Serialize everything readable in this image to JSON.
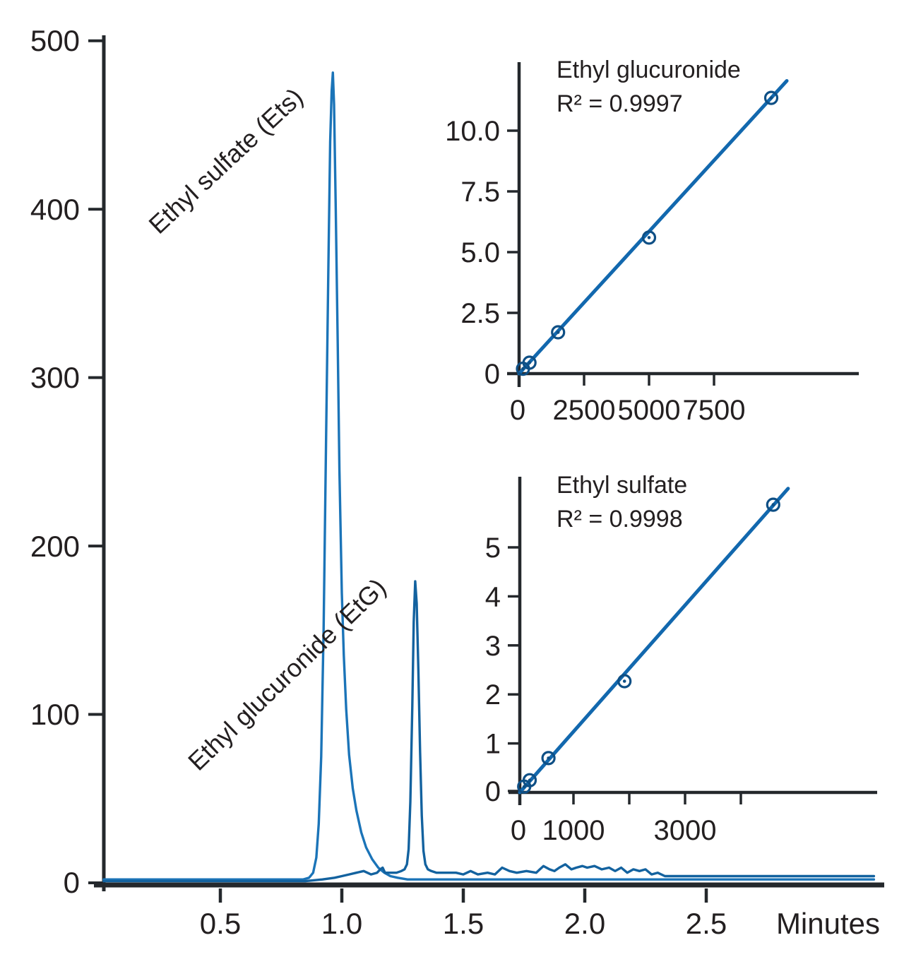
{
  "figure": {
    "accent_blue": "#1268ae",
    "axis_color": "#24282c",
    "text_color": "#231f20"
  },
  "chart_data": [
    {
      "id": "chromatogram",
      "type": "line",
      "xlabel": "Minutes",
      "xlim": [
        0,
        3.2
      ],
      "ylim": [
        0,
        500
      ],
      "x_tick_labels": [
        "0.5",
        "1.0",
        "1.5",
        "2.0",
        "2.5"
      ],
      "x_tick_values": [
        0.5,
        1.0,
        1.5,
        2.0,
        2.5
      ],
      "y_tick_labels": [
        "0",
        "100",
        "200",
        "300",
        "400",
        "500"
      ],
      "y_tick_values": [
        0,
        100,
        200,
        300,
        400,
        500
      ],
      "grid": false,
      "annotations": [
        {
          "label": "Ethyl sulfate (Ets)",
          "angle_deg": -43,
          "refers_to": "peak at 0.97 min"
        },
        {
          "label": "Ethyl glucuronide (EtG)",
          "angle_deg": -44,
          "refers_to": "peak at 1.30 min"
        }
      ],
      "series": [
        {
          "name": "Ethyl sulfate (Ets)",
          "color": "#1b74b8",
          "peak_minutes": 0.97,
          "peak_height": 481,
          "points": [
            [
              0.02,
              2
            ],
            [
              0.3,
              2
            ],
            [
              0.6,
              2
            ],
            [
              0.8,
              2
            ],
            [
              0.84,
              2
            ],
            [
              0.865,
              3
            ],
            [
              0.882,
              6
            ],
            [
              0.895,
              15
            ],
            [
              0.905,
              35
            ],
            [
              0.915,
              75
            ],
            [
              0.925,
              150
            ],
            [
              0.935,
              260
            ],
            [
              0.945,
              370
            ],
            [
              0.952,
              440
            ],
            [
              0.958,
              470
            ],
            [
              0.963,
              481
            ],
            [
              0.968,
              462
            ],
            [
              0.975,
              400
            ],
            [
              0.983,
              320
            ],
            [
              0.99,
              245
            ],
            [
              1.0,
              172
            ],
            [
              1.008,
              135
            ],
            [
              1.018,
              103
            ],
            [
              1.03,
              76
            ],
            [
              1.045,
              56
            ],
            [
              1.06,
              43
            ],
            [
              1.08,
              30
            ],
            [
              1.1,
              21
            ],
            [
              1.125,
              14
            ],
            [
              1.15,
              9
            ],
            [
              1.175,
              6
            ],
            [
              1.2,
              4
            ],
            [
              1.23,
              3
            ],
            [
              1.27,
              2
            ],
            [
              1.35,
              2
            ],
            [
              1.5,
              2
            ],
            [
              1.7,
              2
            ],
            [
              1.9,
              2
            ],
            [
              2.1,
              2
            ],
            [
              2.3,
              2
            ],
            [
              2.5,
              2
            ],
            [
              2.7,
              2
            ],
            [
              2.9,
              2
            ],
            [
              3.1,
              2
            ],
            [
              3.19,
              2
            ]
          ]
        },
        {
          "name": "Ethyl glucuronide (EtG)",
          "color": "#13629f",
          "peak_minutes": 1.3,
          "peak_height": 179,
          "points": [
            [
              0.02,
              1
            ],
            [
              0.3,
              1
            ],
            [
              0.6,
              1
            ],
            [
              0.85,
              1
            ],
            [
              0.92,
              2
            ],
            [
              0.97,
              3
            ],
            [
              1.0,
              4
            ],
            [
              1.03,
              5
            ],
            [
              1.06,
              6
            ],
            [
              1.09,
              7
            ],
            [
              1.12,
              5
            ],
            [
              1.145,
              6
            ],
            [
              1.158,
              8
            ],
            [
              1.168,
              9
            ],
            [
              1.178,
              6
            ],
            [
              1.2,
              6
            ],
            [
              1.225,
              6
            ],
            [
              1.245,
              7
            ],
            [
              1.258,
              8
            ],
            [
              1.268,
              11
            ],
            [
              1.275,
              20
            ],
            [
              1.282,
              48
            ],
            [
              1.29,
              105
            ],
            [
              1.296,
              155
            ],
            [
              1.302,
              179
            ],
            [
              1.308,
              166
            ],
            [
              1.315,
              126
            ],
            [
              1.322,
              78
            ],
            [
              1.329,
              40
            ],
            [
              1.336,
              19
            ],
            [
              1.344,
              11
            ],
            [
              1.354,
              8
            ],
            [
              1.368,
              7
            ],
            [
              1.39,
              6
            ],
            [
              1.43,
              6
            ],
            [
              1.47,
              6
            ],
            [
              1.5,
              5
            ],
            [
              1.53,
              7
            ],
            [
              1.56,
              5
            ],
            [
              1.6,
              6
            ],
            [
              1.63,
              5
            ],
            [
              1.66,
              9
            ],
            [
              1.69,
              7
            ],
            [
              1.72,
              6
            ],
            [
              1.76,
              7
            ],
            [
              1.8,
              6
            ],
            [
              1.83,
              10
            ],
            [
              1.855,
              8
            ],
            [
              1.875,
              7
            ],
            [
              1.895,
              9
            ],
            [
              1.92,
              11
            ],
            [
              1.945,
              8
            ],
            [
              1.965,
              9
            ],
            [
              1.99,
              10
            ],
            [
              2.01,
              9
            ],
            [
              2.04,
              10
            ],
            [
              2.07,
              8
            ],
            [
              2.1,
              9
            ],
            [
              2.125,
              7
            ],
            [
              2.15,
              9
            ],
            [
              2.175,
              6
            ],
            [
              2.2,
              8
            ],
            [
              2.225,
              7
            ],
            [
              2.25,
              8
            ],
            [
              2.275,
              5
            ],
            [
              2.3,
              6
            ],
            [
              2.33,
              4
            ],
            [
              2.38,
              4
            ],
            [
              2.5,
              4
            ],
            [
              2.7,
              4
            ],
            [
              2.9,
              4
            ],
            [
              3.1,
              4
            ],
            [
              3.19,
              4
            ]
          ]
        }
      ]
    },
    {
      "id": "etg-calibration",
      "type": "scatter",
      "title": "Ethyl glucuronide",
      "r2_label": "R² = 0.9997",
      "r_squared": 0.9997,
      "line_color": "#1268ae",
      "marker_color": "#0e4f85",
      "x_tick_labels": [
        "0",
        "2500",
        "5000",
        "7500"
      ],
      "x_tick_values": [
        0,
        2500,
        5000,
        7500
      ],
      "y_tick_labels": [
        "0",
        "2.5",
        "5.0",
        "7.5",
        "10.0"
      ],
      "y_tick_values": [
        0,
        2.5,
        5.0,
        7.5,
        10.0
      ],
      "xlim": [
        0,
        13000
      ],
      "ylim": [
        0,
        12.7
      ],
      "points": [
        [
          150,
          0.2
        ],
        [
          400,
          0.45
        ],
        [
          1500,
          1.7
        ],
        [
          5000,
          5.6
        ],
        [
          9700,
          11.35
        ]
      ],
      "fit_line": [
        [
          0,
          0
        ],
        [
          10300,
          12.05
        ]
      ]
    },
    {
      "id": "ets-calibration",
      "type": "scatter",
      "title": "Ethyl sulfate",
      "r2_label": "R² = 0.9998",
      "r_squared": 0.9998,
      "line_color": "#1268ae",
      "marker_color": "#0e4f85",
      "x_tick_labels": [
        "0",
        "1000",
        "3000"
      ],
      "x_tick_values": [
        0,
        1000,
        3000
      ],
      "x_minor_tick_values": [
        1000,
        2000,
        3000,
        4000
      ],
      "y_tick_labels": [
        "0",
        "1",
        "2",
        "3",
        "4",
        "5"
      ],
      "y_tick_values": [
        0,
        1,
        2,
        3,
        4,
        5
      ],
      "xlim": [
        0,
        6400
      ],
      "ylim": [
        0,
        6.4
      ],
      "points": [
        [
          80,
          0.12
        ],
        [
          180,
          0.25
        ],
        [
          520,
          0.7
        ],
        [
          1900,
          2.27
        ],
        [
          4600,
          5.87
        ]
      ],
      "fit_line": [
        [
          0,
          0
        ],
        [
          4870,
          6.2
        ]
      ]
    }
  ]
}
